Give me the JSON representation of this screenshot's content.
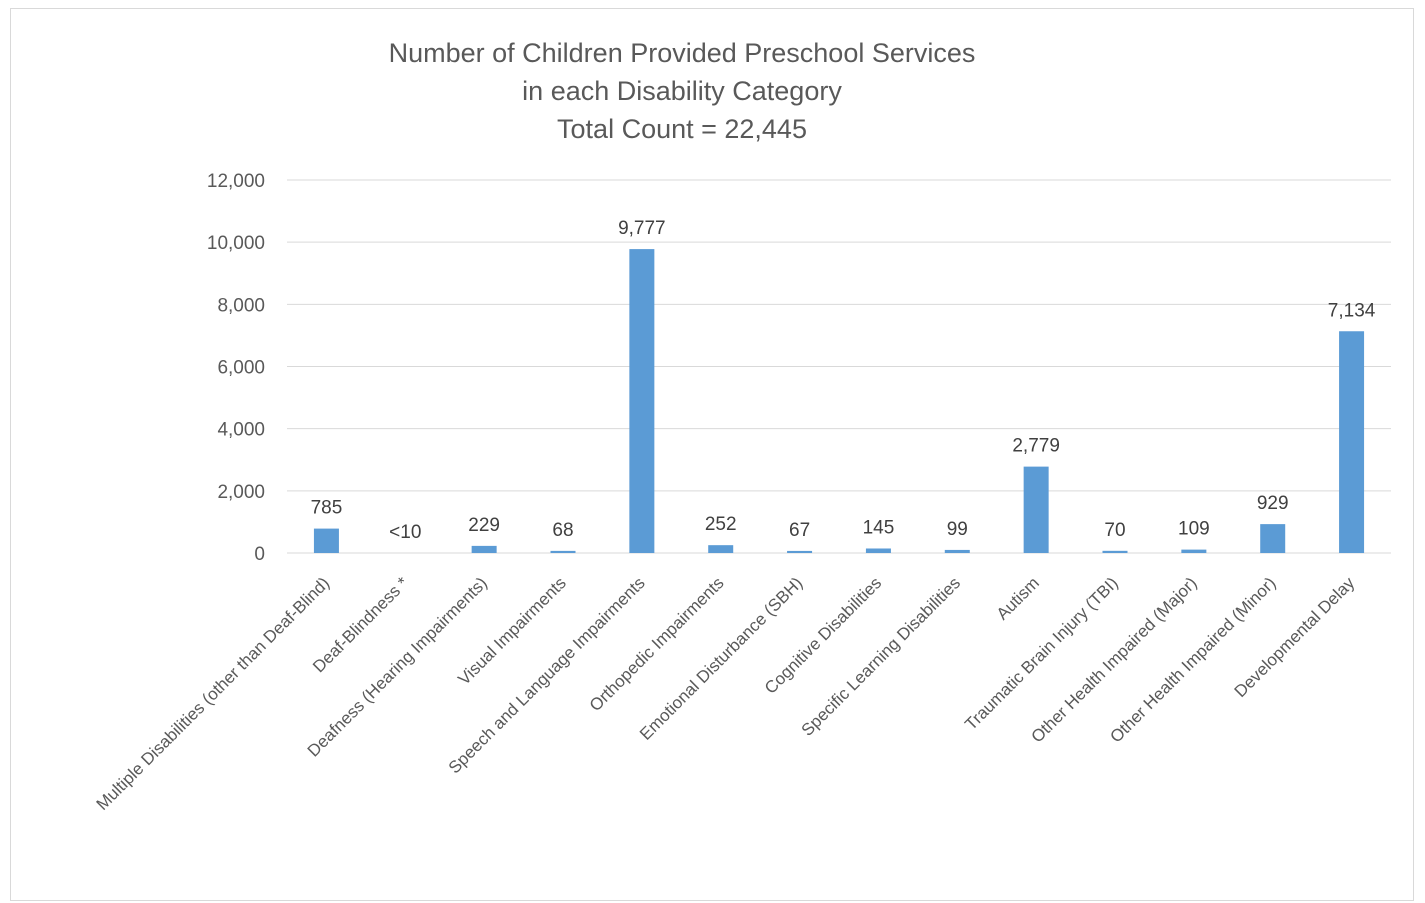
{
  "chart_data": {
    "type": "bar",
    "title": [
      "Number of Children Provided Preschool Services",
      "in each Disability Category",
      "Total Count = 22,445"
    ],
    "xlabel": "",
    "ylabel": "",
    "categories": [
      "Multiple Disabilities (other than Deaf-Blind)",
      "Deaf-Blindness *",
      "Deafness (Hearing Impairments)",
      "Visual Impairments",
      "Speech and Language Impairments",
      "Orthopedic Impairments",
      "Emotional Disturbance (SBH)",
      "Cognitive Disabilities",
      "Specific Learning Disabilities",
      "Autism",
      "Traumatic Brain Injury (TBI)",
      "Other Health Impaired (Major)",
      "Other Health Impaired (Minor)",
      "Developmental Delay"
    ],
    "values": [
      785,
      0,
      229,
      68,
      9777,
      252,
      67,
      145,
      99,
      2779,
      70,
      109,
      929,
      7134
    ],
    "data_labels": [
      "785",
      "<10",
      "229",
      "68",
      "9,777",
      "252",
      "67",
      "145",
      "99",
      "2,779",
      "70",
      "109",
      "929",
      "7,134"
    ],
    "yticks": [
      "0",
      "2,000",
      "4,000",
      "6,000",
      "8,000",
      "10,000",
      "12,000"
    ],
    "ylim": [
      0,
      12000
    ],
    "grid": true,
    "legend": "none",
    "bar_color": "#5b9bd5",
    "grid_color": "#d9d9d9"
  }
}
